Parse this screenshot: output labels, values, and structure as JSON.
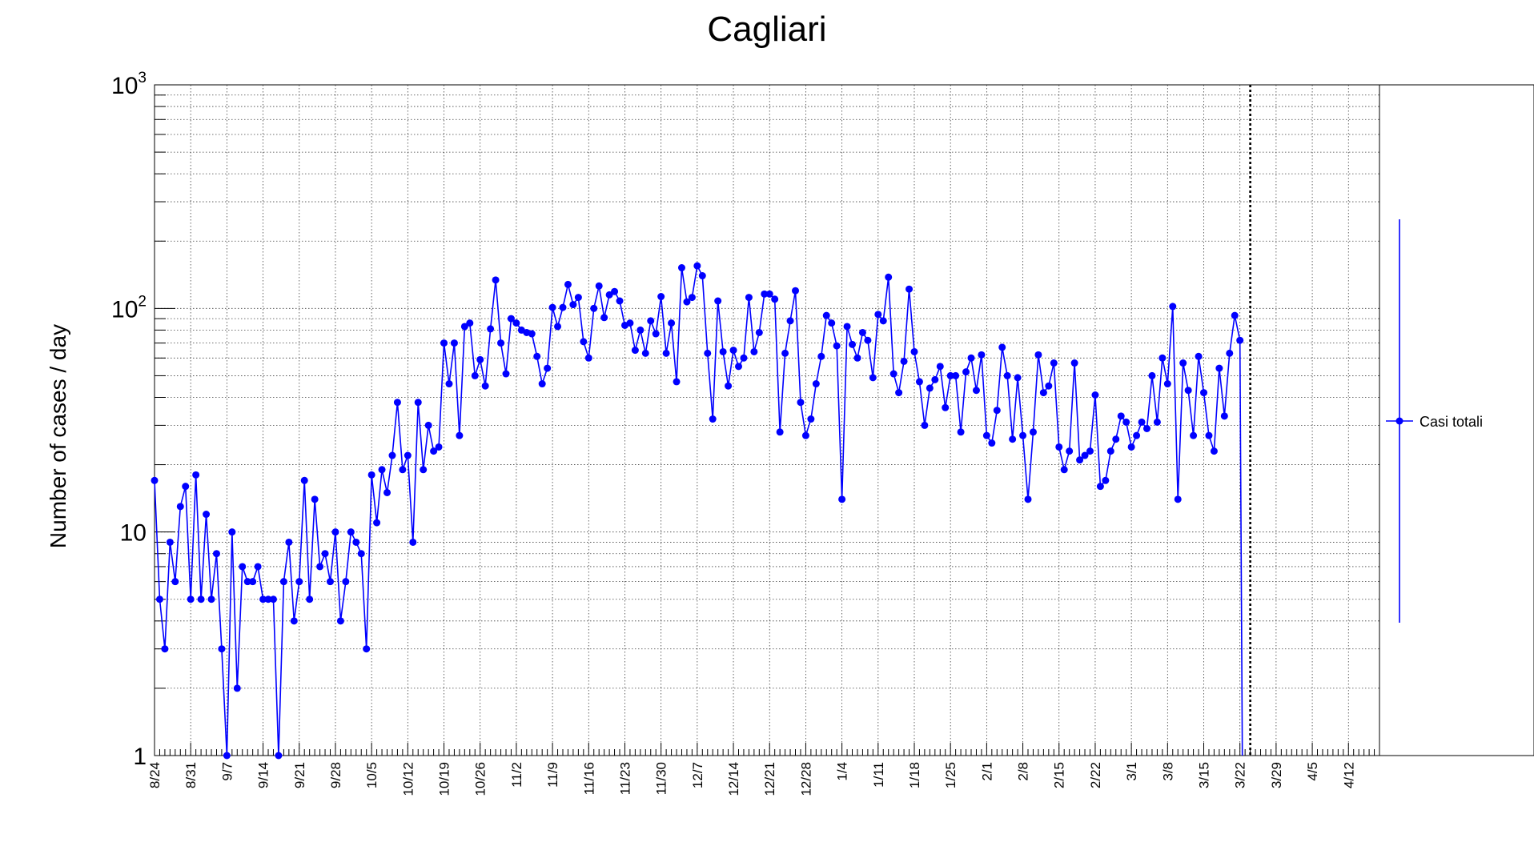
{
  "chart_data": {
    "type": "line",
    "title": "Cagliari",
    "ylabel": "Number of cases / day",
    "xlabel": "",
    "y_scale": "log",
    "ylim": [
      1,
      1000
    ],
    "y_tick_labels": [
      {
        "value": 1,
        "base": "1",
        "exp": ""
      },
      {
        "value": 10,
        "base": "10",
        "exp": ""
      },
      {
        "value": 100,
        "base": "10",
        "exp": "2"
      },
      {
        "value": 1000,
        "base": "10",
        "exp": "3"
      }
    ],
    "x_start_date": "2020-08-24",
    "x_end_date": "2021-04-18",
    "x_tick_labels": [
      "8/24",
      "8/31",
      "9/7",
      "9/14",
      "9/21",
      "9/28",
      "10/5",
      "10/12",
      "10/19",
      "10/26",
      "11/2",
      "11/9",
      "11/16",
      "11/23",
      "11/30",
      "12/7",
      "12/14",
      "12/21",
      "12/28",
      "1/4",
      "1/11",
      "1/18",
      "1/25",
      "2/1",
      "2/8",
      "2/15",
      "2/22",
      "3/1",
      "3/8",
      "3/15",
      "3/22",
      "3/29",
      "4/5",
      "4/12"
    ],
    "grid": true,
    "legend_position": "right",
    "vertical_marker_date": "2021-03-24",
    "series": [
      {
        "name": "Casi totali",
        "color": "#0000ff",
        "start_date": "2020-08-24",
        "values": [
          17,
          5,
          3,
          9,
          6,
          13,
          16,
          5,
          18,
          5,
          12,
          5,
          8,
          3,
          1,
          10,
          2,
          7,
          6,
          6,
          7,
          5,
          5,
          5,
          1,
          6,
          9,
          4,
          6,
          17,
          5,
          14,
          7,
          8,
          6,
          10,
          4,
          6,
          10,
          9,
          8,
          3,
          18,
          11,
          19,
          15,
          22,
          38,
          19,
          22,
          9,
          38,
          19,
          30,
          23,
          24,
          70,
          46,
          70,
          27,
          83,
          86,
          50,
          59,
          45,
          81,
          134,
          70,
          51,
          90,
          86,
          80,
          78,
          77,
          61,
          46,
          54,
          101,
          83,
          101,
          128,
          104,
          112,
          71,
          60,
          100,
          126,
          91,
          115,
          119,
          108,
          84,
          86,
          65,
          80,
          63,
          88,
          77,
          113,
          63,
          86,
          47,
          152,
          107,
          112,
          155,
          140,
          63,
          32,
          108,
          64,
          45,
          65,
          55,
          60,
          112,
          64,
          78,
          116,
          116,
          110,
          28,
          63,
          88,
          120,
          38,
          27,
          32,
          46,
          61,
          93,
          86,
          68,
          14,
          83,
          69,
          60,
          78,
          72,
          49,
          94,
          88,
          138,
          51,
          42,
          58,
          122,
          64,
          47,
          30,
          44,
          48,
          55,
          36,
          50,
          50,
          28,
          52,
          60,
          43,
          62,
          27,
          25,
          35,
          67,
          50,
          26,
          49,
          27,
          14,
          28,
          62,
          42,
          45,
          57,
          24,
          19,
          23,
          57,
          21,
          22,
          23,
          41,
          16,
          17,
          23,
          26,
          33,
          31,
          24,
          27,
          31,
          29,
          50,
          31,
          60,
          46,
          102,
          14,
          57,
          43,
          27,
          61,
          42,
          27,
          23,
          54,
          33,
          63,
          93,
          72
        ]
      }
    ]
  }
}
